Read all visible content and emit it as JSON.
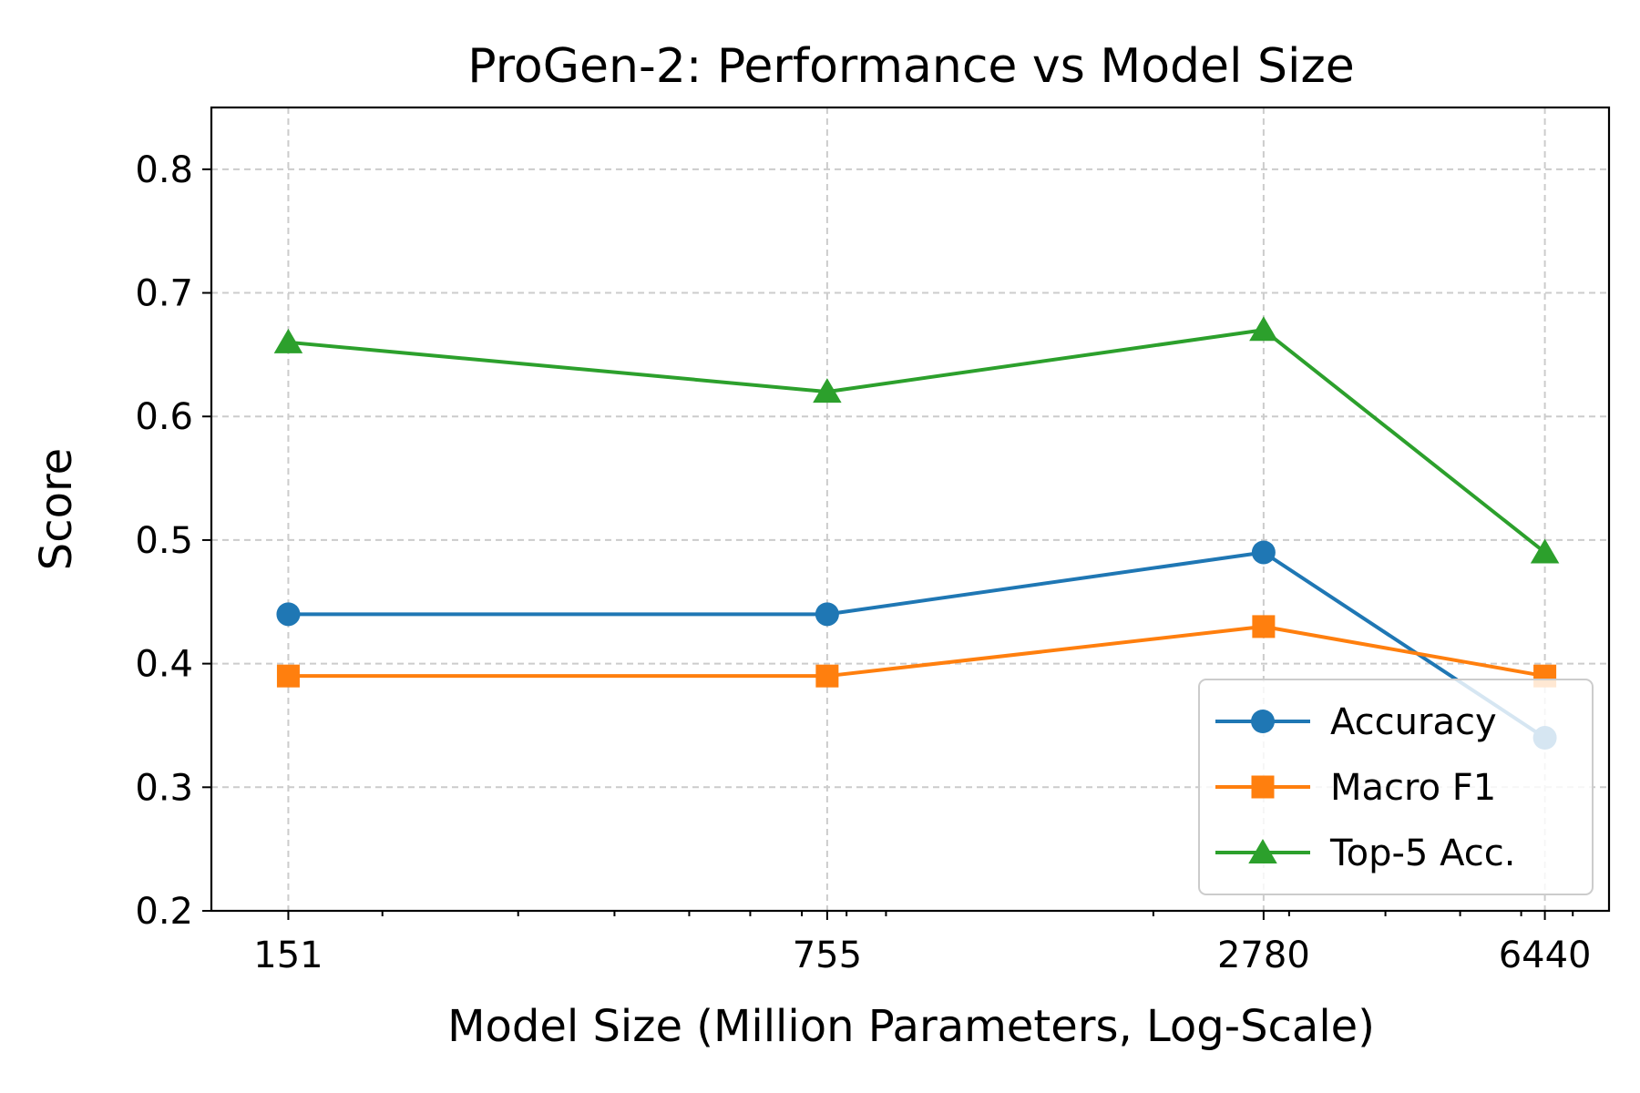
{
  "chart_data": {
    "type": "line",
    "title": "ProGen-2: Performance vs Model Size",
    "xlabel": "Model Size (Million Parameters, Log-Scale)",
    "ylabel": "Score",
    "x_scale": "log",
    "x": [
      151,
      755,
      2780,
      6440
    ],
    "x_tick_labels": [
      "151",
      "755",
      "2780",
      "6440"
    ],
    "xlim": [
      120,
      7800
    ],
    "ylim": [
      0.2,
      0.85
    ],
    "y_ticks": [
      0.2,
      0.3,
      0.4,
      0.5,
      0.6,
      0.7,
      0.8
    ],
    "y_tick_labels": [
      "0.2",
      "0.3",
      "0.4",
      "0.5",
      "0.6",
      "0.7",
      "0.8"
    ],
    "grid": true,
    "legend_position": "lower-right",
    "series": [
      {
        "name": "Accuracy",
        "values": [
          0.44,
          0.44,
          0.49,
          0.34
        ],
        "color": "#1f77b4",
        "marker": "circle"
      },
      {
        "name": "Macro F1",
        "values": [
          0.39,
          0.39,
          0.43,
          0.39
        ],
        "color": "#ff7f0e",
        "marker": "square"
      },
      {
        "name": "Top-5 Acc.",
        "values": [
          0.66,
          0.62,
          0.67,
          0.49
        ],
        "color": "#2ca02c",
        "marker": "triangle"
      }
    ]
  }
}
